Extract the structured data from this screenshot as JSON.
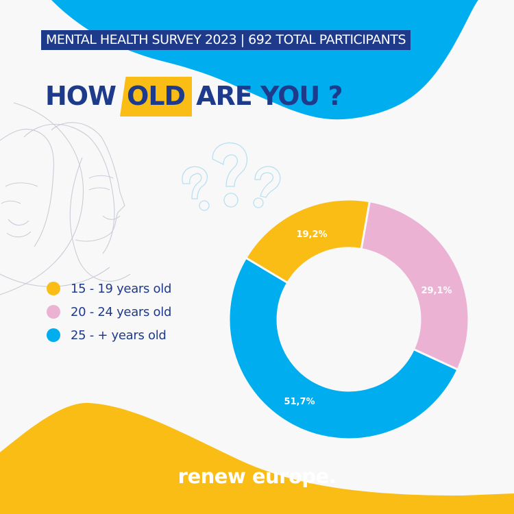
{
  "banner": {
    "text": "MENTAL HEALTH SURVEY 2023 | 692 TOTAL PARTICIPANTS"
  },
  "headline": {
    "before": "HOW",
    "highlight": "OLD",
    "after": "ARE YOU ?"
  },
  "colors": {
    "navy": "#1e3a8a",
    "blue": "#00adee",
    "yellow": "#f9bd16",
    "pink": "#ebb2d4",
    "background": "#f8f8f8"
  },
  "legend": [
    {
      "label": "15 - 19 years old",
      "color": "#f9bd16"
    },
    {
      "label": "20 - 24 years old",
      "color": "#ebb2d4"
    },
    {
      "label": "25 - + years old",
      "color": "#00adee"
    }
  ],
  "chart_data": {
    "type": "pie",
    "subtype": "donut",
    "title": "HOW OLD ARE YOU ?",
    "subtitle": "MENTAL HEALTH SURVEY 2023 | 692 TOTAL PARTICIPANTS",
    "categories": [
      "15 - 19 years old",
      "20 - 24 years old",
      "25 - + years old"
    ],
    "values": [
      19.2,
      29.1,
      51.7
    ],
    "value_labels": [
      "19,2%",
      "29,1%",
      "51,7%"
    ],
    "colors": [
      "#f9bd16",
      "#ebb2d4",
      "#00adee"
    ],
    "legend_position": "left",
    "total_participants": 692
  },
  "footer": {
    "brand": "renew europe."
  }
}
